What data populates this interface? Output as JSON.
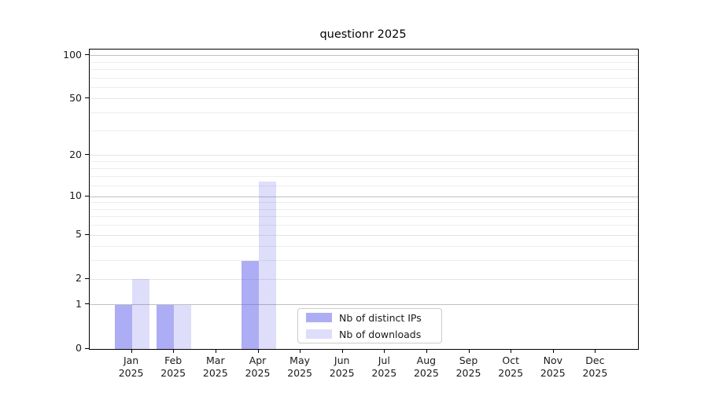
{
  "chart_data": {
    "type": "bar",
    "title": "questionr 2025",
    "months": [
      "Jan",
      "Feb",
      "Mar",
      "Apr",
      "May",
      "Jun",
      "Jul",
      "Aug",
      "Sep",
      "Oct",
      "Nov",
      "Dec"
    ],
    "year": "2025",
    "series": [
      {
        "name": "Nb of distinct IPs",
        "color": "rgba(92,92,235,0.5)",
        "values": [
          1,
          1,
          0,
          3,
          0,
          0,
          0,
          0,
          0,
          0,
          0,
          0
        ]
      },
      {
        "name": "Nb of downloads",
        "color": "rgba(92,92,235,0.2)",
        "values": [
          2,
          1,
          0,
          13,
          0,
          0,
          0,
          0,
          0,
          0,
          0,
          0
        ]
      }
    ],
    "yscale": "log1p",
    "ylim": [
      0,
      110
    ],
    "yticks_labeled": [
      0,
      1,
      2,
      5,
      10,
      20,
      50,
      100
    ],
    "yticks_major": [
      1,
      10,
      100
    ],
    "yticks_minor": [
      3,
      4,
      6,
      7,
      8,
      9,
      12,
      14,
      16,
      18,
      30,
      40,
      60,
      70,
      80,
      90
    ],
    "grid": true,
    "legend_position": "inside lower right",
    "axis_color": "#000000"
  }
}
